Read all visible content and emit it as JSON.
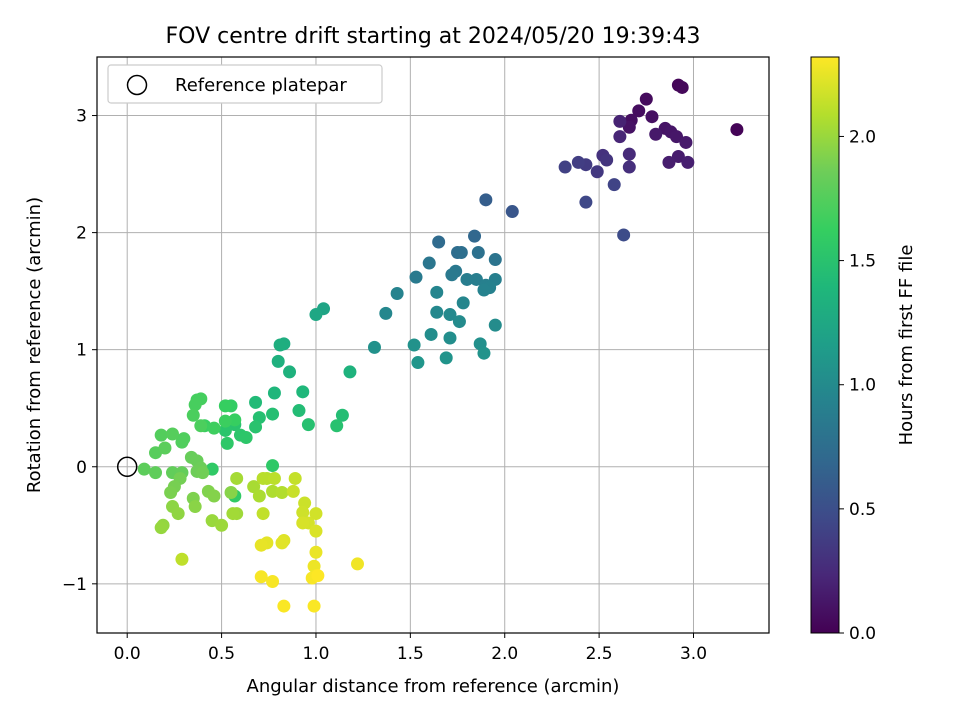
{
  "chart_data": {
    "type": "scatter",
    "title": "FOV centre drift starting at 2024/05/20 19:39:43",
    "xlabel": "Angular distance from reference (arcmin)",
    "ylabel": "Rotation from reference (arcmin)",
    "xlim": [
      -0.16,
      3.4
    ],
    "ylim": [
      -1.42,
      3.5
    ],
    "xticks": [
      "0.0",
      "0.5",
      "1.0",
      "1.5",
      "2.0",
      "2.5",
      "3.0"
    ],
    "yticks": [
      "−1",
      "0",
      "1",
      "2",
      "3"
    ],
    "grid": true,
    "legend": {
      "position": "top-left",
      "entries": [
        "Reference platepar"
      ]
    },
    "reference_point": {
      "x": 0.0,
      "y": 0.0
    },
    "colorbar": {
      "label": "Hours from first FF file",
      "range": [
        0.0,
        2.32
      ],
      "ticks": [
        "0.0",
        "0.5",
        "1.0",
        "1.5",
        "2.0"
      ],
      "colormap": "viridis"
    },
    "points": [
      [
        3.23,
        2.88,
        0.02
      ],
      [
        2.92,
        3.26,
        0.03
      ],
      [
        2.94,
        3.24,
        0.04
      ],
      [
        2.75,
        3.14,
        0.06
      ],
      [
        2.71,
        3.04,
        0.07
      ],
      [
        2.67,
        2.96,
        0.08
      ],
      [
        2.78,
        2.99,
        0.09
      ],
      [
        2.66,
        2.9,
        0.1
      ],
      [
        2.85,
        2.89,
        0.11
      ],
      [
        2.88,
        2.86,
        0.12
      ],
      [
        2.91,
        2.82,
        0.13
      ],
      [
        2.8,
        2.84,
        0.14
      ],
      [
        2.96,
        2.77,
        0.15
      ],
      [
        2.92,
        2.65,
        0.16
      ],
      [
        2.87,
        2.6,
        0.17
      ],
      [
        2.97,
        2.6,
        0.18
      ],
      [
        2.61,
        2.95,
        0.2
      ],
      [
        2.61,
        2.82,
        0.22
      ],
      [
        2.66,
        2.67,
        0.25
      ],
      [
        2.66,
        2.56,
        0.28
      ],
      [
        2.52,
        2.66,
        0.3
      ],
      [
        2.54,
        2.62,
        0.32
      ],
      [
        2.49,
        2.52,
        0.34
      ],
      [
        2.43,
        2.58,
        0.36
      ],
      [
        2.39,
        2.6,
        0.38
      ],
      [
        2.32,
        2.56,
        0.4
      ],
      [
        2.58,
        2.41,
        0.42
      ],
      [
        2.43,
        2.26,
        0.45
      ],
      [
        2.63,
        1.98,
        0.48
      ],
      [
        2.04,
        2.18,
        0.56
      ],
      [
        1.9,
        2.28,
        0.62
      ],
      [
        1.84,
        1.97,
        0.7
      ],
      [
        1.65,
        1.92,
        0.72
      ],
      [
        1.75,
        1.83,
        0.74
      ],
      [
        1.77,
        1.83,
        0.76
      ],
      [
        1.86,
        1.83,
        0.78
      ],
      [
        1.95,
        1.77,
        0.8
      ],
      [
        1.6,
        1.74,
        0.82
      ],
      [
        1.74,
        1.67,
        0.84
      ],
      [
        1.72,
        1.64,
        0.85
      ],
      [
        1.53,
        1.62,
        0.86
      ],
      [
        1.8,
        1.6,
        0.88
      ],
      [
        1.85,
        1.6,
        0.89
      ],
      [
        1.95,
        1.6,
        0.9
      ],
      [
        1.9,
        1.55,
        0.91
      ],
      [
        1.92,
        1.53,
        0.92
      ],
      [
        1.89,
        1.51,
        0.93
      ],
      [
        1.43,
        1.48,
        0.94
      ],
      [
        1.64,
        1.49,
        0.95
      ],
      [
        1.78,
        1.4,
        0.96
      ],
      [
        1.37,
        1.31,
        0.97
      ],
      [
        1.64,
        1.32,
        0.98
      ],
      [
        1.71,
        1.3,
        0.99
      ],
      [
        1.76,
        1.24,
        1.0
      ],
      [
        1.95,
        1.21,
        1.01
      ],
      [
        1.61,
        1.13,
        1.02
      ],
      [
        1.71,
        1.1,
        1.03
      ],
      [
        1.87,
        1.05,
        1.04
      ],
      [
        1.31,
        1.02,
        1.05
      ],
      [
        1.52,
        1.04,
        1.06
      ],
      [
        1.89,
        0.97,
        1.07
      ],
      [
        1.69,
        0.93,
        1.08
      ],
      [
        1.54,
        0.89,
        1.09
      ],
      [
        1.04,
        1.35,
        1.22
      ],
      [
        1.0,
        1.3,
        1.24
      ],
      [
        0.83,
        1.05,
        1.3
      ],
      [
        0.81,
        1.04,
        1.31
      ],
      [
        0.8,
        0.9,
        1.33
      ],
      [
        0.86,
        0.81,
        1.34
      ],
      [
        1.18,
        0.81,
        1.35
      ],
      [
        0.78,
        0.63,
        1.38
      ],
      [
        0.93,
        0.64,
        1.39
      ],
      [
        0.68,
        0.55,
        1.42
      ],
      [
        0.91,
        0.48,
        1.44
      ],
      [
        1.14,
        0.44,
        1.45
      ],
      [
        0.77,
        0.45,
        1.46
      ],
      [
        0.7,
        0.42,
        1.47
      ],
      [
        0.96,
        0.36,
        1.48
      ],
      [
        1.11,
        0.35,
        1.49
      ],
      [
        0.68,
        0.34,
        1.5
      ],
      [
        0.57,
        0.36,
        1.51
      ],
      [
        0.52,
        0.31,
        1.52
      ],
      [
        0.6,
        0.27,
        1.53
      ],
      [
        0.63,
        0.25,
        1.54
      ],
      [
        0.53,
        0.2,
        1.55
      ],
      [
        0.77,
        0.01,
        1.56
      ],
      [
        0.45,
        -0.02,
        1.57
      ],
      [
        0.57,
        -0.25,
        1.58
      ],
      [
        0.55,
        0.52,
        1.6
      ],
      [
        0.52,
        0.52,
        1.62
      ],
      [
        0.57,
        0.4,
        1.63
      ],
      [
        0.41,
        0.35,
        1.64
      ],
      [
        0.52,
        0.39,
        1.65
      ],
      [
        0.46,
        0.33,
        1.66
      ],
      [
        0.37,
        0.57,
        1.68
      ],
      [
        0.39,
        0.58,
        1.69
      ],
      [
        0.36,
        0.53,
        1.7
      ],
      [
        0.35,
        0.44,
        1.71
      ],
      [
        0.39,
        0.35,
        1.72
      ],
      [
        0.3,
        0.24,
        1.73
      ],
      [
        0.29,
        0.21,
        1.74
      ],
      [
        0.18,
        0.27,
        1.75
      ],
      [
        0.24,
        0.28,
        1.76
      ],
      [
        0.15,
        0.12,
        1.77
      ],
      [
        0.2,
        0.16,
        1.78
      ],
      [
        0.09,
        -0.02,
        1.79
      ],
      [
        0.15,
        -0.05,
        1.8
      ],
      [
        0.24,
        -0.05,
        1.81
      ],
      [
        0.29,
        -0.05,
        1.82
      ],
      [
        0.34,
        0.08,
        1.83
      ],
      [
        0.37,
        0.05,
        1.84
      ],
      [
        0.39,
        -0.01,
        1.85
      ],
      [
        0.37,
        -0.04,
        1.86
      ],
      [
        0.4,
        -0.05,
        1.87
      ],
      [
        0.28,
        -0.1,
        1.88
      ],
      [
        0.25,
        -0.17,
        1.89
      ],
      [
        0.23,
        -0.22,
        1.9
      ],
      [
        0.35,
        -0.27,
        1.91
      ],
      [
        0.43,
        -0.21,
        1.92
      ],
      [
        0.46,
        -0.25,
        1.93
      ],
      [
        0.55,
        -0.22,
        1.94
      ],
      [
        0.36,
        -0.34,
        1.95
      ],
      [
        0.24,
        -0.34,
        1.96
      ],
      [
        0.27,
        -0.4,
        1.97
      ],
      [
        0.19,
        -0.5,
        1.98
      ],
      [
        0.18,
        -0.52,
        1.99
      ],
      [
        0.45,
        -0.46,
        2.0
      ],
      [
        0.5,
        -0.5,
        2.01
      ],
      [
        0.58,
        -0.4,
        2.02
      ],
      [
        0.56,
        -0.4,
        2.03
      ],
      [
        0.58,
        -0.1,
        2.04
      ],
      [
        0.67,
        -0.17,
        2.05
      ],
      [
        0.7,
        -0.25,
        2.06
      ],
      [
        0.77,
        -0.21,
        2.07
      ],
      [
        0.82,
        -0.22,
        2.08
      ],
      [
        0.74,
        -0.1,
        2.09
      ],
      [
        0.72,
        -0.1,
        2.1
      ],
      [
        0.78,
        -0.1,
        2.11
      ],
      [
        0.29,
        -0.79,
        2.12
      ],
      [
        0.72,
        -0.4,
        2.13
      ],
      [
        0.89,
        -0.1,
        2.14
      ],
      [
        0.88,
        -0.21,
        2.15
      ],
      [
        0.94,
        -0.31,
        2.16
      ],
      [
        0.93,
        -0.39,
        2.17
      ],
      [
        1.0,
        -0.4,
        2.18
      ],
      [
        0.96,
        -0.48,
        2.19
      ],
      [
        0.93,
        -0.48,
        2.2
      ],
      [
        1.0,
        -0.55,
        2.21
      ],
      [
        0.83,
        -0.63,
        2.22
      ],
      [
        0.82,
        -0.65,
        2.23
      ],
      [
        0.74,
        -0.65,
        2.24
      ],
      [
        0.71,
        -0.67,
        2.25
      ],
      [
        1.0,
        -0.73,
        2.26
      ],
      [
        0.99,
        -0.85,
        2.27
      ],
      [
        1.22,
        -0.83,
        2.28
      ],
      [
        1.0,
        -0.93,
        2.29
      ],
      [
        0.98,
        -0.95,
        2.3
      ],
      [
        0.71,
        -0.94,
        2.3
      ],
      [
        0.77,
        -0.98,
        2.3
      ],
      [
        0.83,
        -1.19,
        2.31
      ],
      [
        0.99,
        -1.19,
        2.31
      ],
      [
        1.01,
        -0.93,
        2.32
      ]
    ]
  }
}
